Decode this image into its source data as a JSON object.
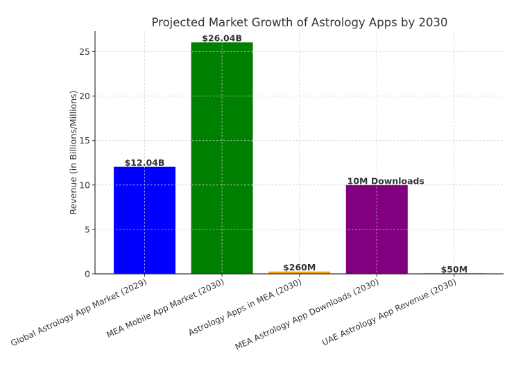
{
  "chart_data": {
    "type": "bar",
    "title": "Projected Market Growth of Astrology Apps by 2030",
    "xlabel": "",
    "ylabel": "Revenue (in Billions/Millions)",
    "ylim": [
      0,
      27.3
    ],
    "yticks": [
      0,
      5,
      10,
      15,
      20,
      25
    ],
    "grid": true,
    "legend": null,
    "categories": [
      "Global Astrology App Market (2029)",
      "MEA Mobile App Market (2030)",
      "Astrology Apps in MEA (2030)",
      "MEA Astrology App Downloads (2030)",
      "UAE Astrology App Revenue (2030)"
    ],
    "values": [
      12.04,
      26.04,
      0.26,
      10,
      0.05
    ],
    "colors": [
      "#0000ff",
      "#008000",
      "#ffa500",
      "#800080",
      "#ff0000"
    ],
    "bar_labels": [
      "$12.04B",
      "$26.04B",
      "$260M",
      "10M Downloads",
      "$50M"
    ]
  }
}
